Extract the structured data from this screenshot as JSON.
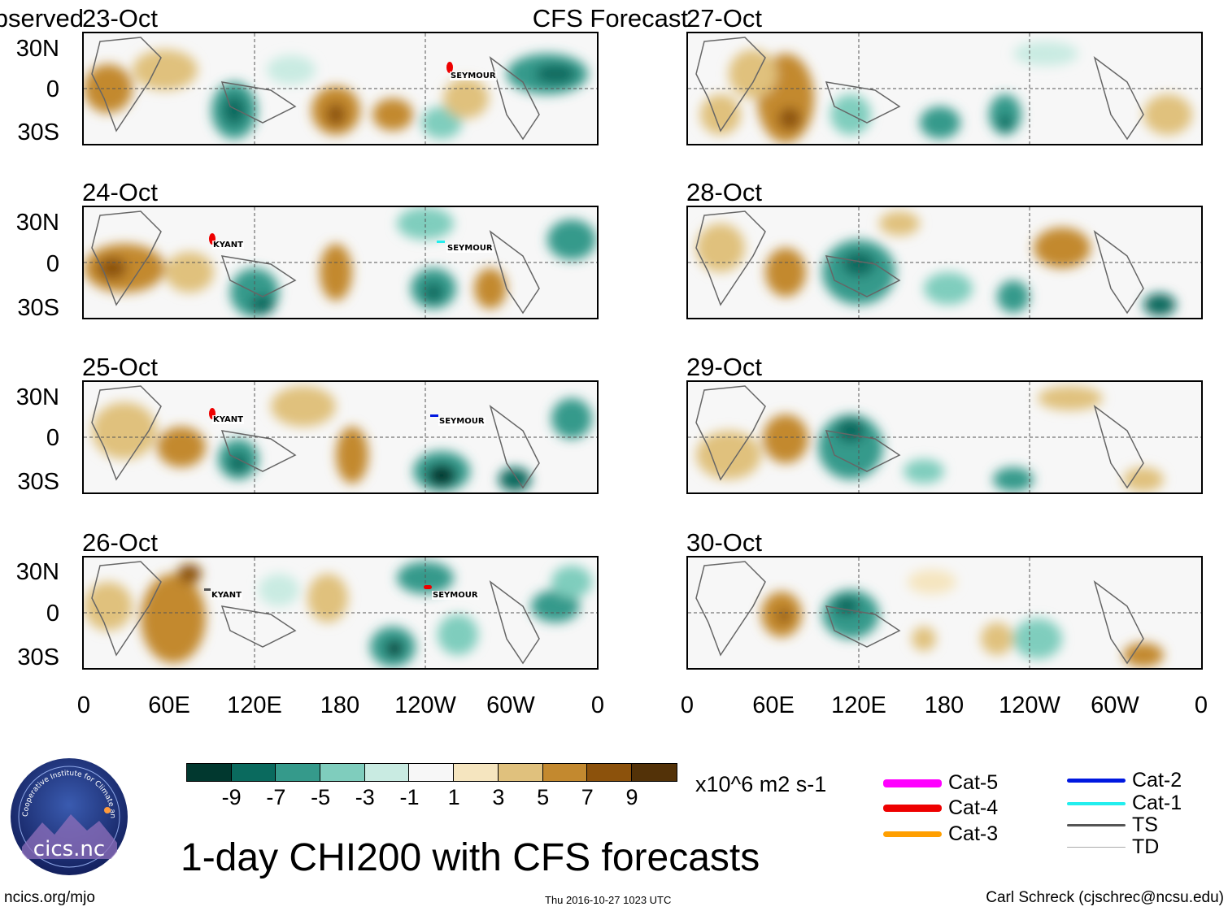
{
  "observed_label": "Observed",
  "forecast_label": "CFS Forecast",
  "observed_panels": [
    {
      "date": "23-Oct",
      "storms": [
        {
          "name": "SEYMOUR",
          "cat": "Cat-4"
        }
      ]
    },
    {
      "date": "24-Oct",
      "storms": [
        {
          "name": "KYANT",
          "cat": "Cat-4"
        },
        {
          "name": "SEYMOUR",
          "cat": "Cat-1"
        }
      ]
    },
    {
      "date": "25-Oct",
      "storms": [
        {
          "name": "KYANT",
          "cat": "Cat-4"
        },
        {
          "name": "SEYMOUR",
          "cat": "Cat-2"
        }
      ]
    },
    {
      "date": "26-Oct",
      "storms": [
        {
          "name": "KYANT",
          "cat": "TS"
        },
        {
          "name": "SEYMOUR",
          "cat": "Cat-4"
        }
      ]
    }
  ],
  "forecast_panels": [
    {
      "date": "27-Oct"
    },
    {
      "date": "28-Oct"
    },
    {
      "date": "29-Oct"
    },
    {
      "date": "30-Oct"
    }
  ],
  "lat_labels": [
    "30N",
    "0",
    "30S"
  ],
  "lon_labels": [
    "0",
    "60E",
    "120E",
    "180",
    "120W",
    "60W",
    "0"
  ],
  "colorbar": {
    "ticks": [
      "-9",
      "-7",
      "-5",
      "-3",
      "-1",
      "1",
      "3",
      "5",
      "7",
      "9"
    ],
    "colors": [
      "#01382f",
      "#0a6a5e",
      "#359a8b",
      "#7fcdbd",
      "#c9ebe2",
      "#f7f7f7",
      "#f5e5bf",
      "#e0c17d",
      "#c3892f",
      "#8c520c",
      "#533208"
    ],
    "units": "x10^6 m2 s-1"
  },
  "legend": [
    {
      "label": "Cat-5",
      "color": "#ff00ff"
    },
    {
      "label": "Cat-4",
      "color": "#ee0000"
    },
    {
      "label": "Cat-3",
      "color": "#ff9f00"
    },
    {
      "label": "Cat-2",
      "color": "#0018e0"
    },
    {
      "label": "Cat-1",
      "color": "#22eeee"
    },
    {
      "label": "TS",
      "color": "#555555"
    },
    {
      "label": "TD",
      "color": "#aaaaaa"
    }
  ],
  "title": "1-day CHI200 with CFS forecasts",
  "footer": {
    "left": "ncics.org/mjo",
    "center": "Thu 2016-10-27 1023 UTC",
    "right": "Carl Schreck (cjschrec@ncsu.edu)"
  },
  "logo": {
    "text": "cics.nc",
    "ring_text": "Cooperative Institute for Climate and Satellites"
  }
}
